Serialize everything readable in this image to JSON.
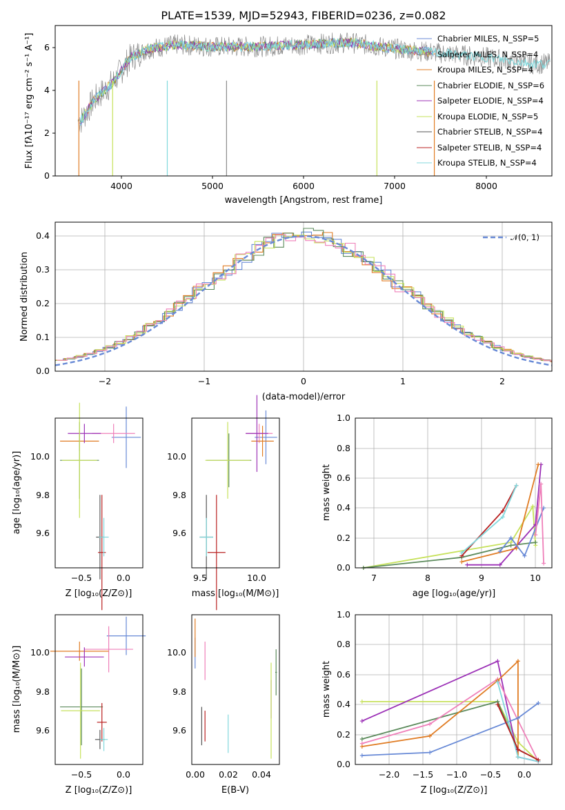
{
  "title": "PLATE=1539, MJD=52943, FIBERID=0236, z=0.082",
  "colors": [
    "#6789d6",
    "#8a8a8a",
    "#e07b22",
    "#5b8a5b",
    "#9b2fb6",
    "#c6e15a",
    "#555555",
    "#b81f1f",
    "#80d8dc",
    "#ef7fb9"
  ],
  "panels": {
    "spectrum": {
      "xlabel": "wavelength [Angstrom, rest frame]",
      "ylabel": "Flux [fλ10⁻¹⁷ erg cm⁻² s⁻¹ A⁻¹]",
      "xticks": [
        "4000",
        "5000",
        "6000",
        "7000",
        "8000"
      ],
      "yticks": [
        "0",
        "2",
        "4",
        "6"
      ],
      "legend": [
        "Chabrier MILES, N_SSP=5",
        "Salpeter MILES, N_SSP=4",
        "Kroupa MILES, N_SSP=4",
        "Chabrier ELODIE, N_SSP=6",
        "Salpeter ELODIE, N_SSP=4",
        "Kroupa ELODIE, N_SSP=5",
        "Chabrier STELIB, N_SSP=4",
        "Salpeter STELIB, N_SSP=4",
        "Kroupa STELIB, N_SSP=4"
      ]
    },
    "residuals": {
      "xlabel": "(data-model)/error",
      "ylabel": "Normed distribution",
      "xticks": [
        "−2",
        "−1",
        "0",
        "1",
        "2"
      ],
      "yticks": [
        "0.0",
        "0.1",
        "0.2",
        "0.3",
        "0.4"
      ],
      "legend": "𝒩(0, 1)"
    },
    "age_z": {
      "xlabel": "Z [log₁₀(Z/Z⊙)]",
      "ylabel": "age  [log₁₀(age/yr)]",
      "xticks": [
        "−0.5",
        "0.0"
      ],
      "yticks": [
        "9.6",
        "9.8",
        "10.0"
      ]
    },
    "age_mass": {
      "xlabel": "mass [log₁₀(M/M⊙)]",
      "xticks": [
        "9.5",
        "10.0"
      ],
      "yticks": [
        "9.6",
        "9.8",
        "10.0"
      ]
    },
    "weight_age": {
      "xlabel": "age  [log₁₀(age/yr)]",
      "ylabel": "mass weight",
      "xticks": [
        "7",
        "8",
        "9",
        "10"
      ],
      "yticks": [
        "0.0",
        "0.2",
        "0.4",
        "0.6",
        "0.8",
        "1.0"
      ]
    },
    "mass_z": {
      "xlabel": "Z [log₁₀(Z/Z⊙)]",
      "ylabel": "mass [log₁₀(M/M⊙)]",
      "xticks": [
        "−0.5",
        "0.0"
      ],
      "yticks": [
        "9.6",
        "9.8",
        "10.0"
      ]
    },
    "mass_ebv": {
      "xlabel": "E(B-V)",
      "xticks": [
        "0.00",
        "0.02",
        "0.04"
      ],
      "yticks": [
        "9.6",
        "9.8",
        "10.0"
      ]
    },
    "weight_z": {
      "xlabel": "Z [log₁₀(Z/Z⊙)]",
      "ylabel": "mass weight",
      "xticks": [
        "−2.0",
        "−1.5",
        "−1.0",
        "−0.5",
        "0.0"
      ],
      "yticks": [
        "0.0",
        "0.2",
        "0.4",
        "0.6",
        "0.8",
        "1.0"
      ]
    }
  },
  "chart_data": [
    {
      "type": "line",
      "xlim": [
        3270,
        8720
      ],
      "ylim": [
        0,
        7.1
      ],
      "series": [
        {
          "name": "Chabrier MILES, N_SSP=5"
        },
        {
          "name": "Kroupa STELIB, N_SSP=4"
        }
      ],
      "x": [
        3550,
        3700,
        3900,
        4100,
        4300,
        4600,
        5000,
        5500,
        6000,
        6500,
        7000,
        7500,
        8000,
        8500
      ],
      "y": [
        2.6,
        3.6,
        4.4,
        5.6,
        6.0,
        6.2,
        6.1,
        6.1,
        6.2,
        6.3,
        6.0,
        5.8,
        5.6,
        5.3
      ]
    },
    {
      "type": "line",
      "grid": true,
      "xlim": [
        -2.5,
        2.5
      ],
      "ylim": [
        0,
        0.44
      ],
      "x": [
        -2.5,
        -2.0,
        -1.5,
        -1.0,
        -0.5,
        0.0,
        0.5,
        1.0,
        1.5,
        2.0,
        2.5
      ],
      "series": [
        {
          "name": "𝒩(0, 1)",
          "values": [
            0.0175,
            0.054,
            0.1295,
            0.242,
            0.352,
            0.399,
            0.352,
            0.242,
            0.1295,
            0.054,
            0.0175
          ]
        },
        {
          "name": "Chabrier MILES, N_SSP=5",
          "values": [
            0.02,
            0.06,
            0.14,
            0.27,
            0.37,
            0.37,
            0.36,
            0.3,
            0.16,
            0.07,
            0.025
          ]
        }
      ]
    },
    {
      "type": "scatter",
      "xlim": [
        -0.7,
        0.2
      ],
      "ylim": [
        9.42,
        10.2
      ],
      "x": [
        0.03,
        -0.1,
        -0.45,
        -0.45,
        -0.4,
        -0.45,
        -0.24,
        -0.22,
        -0.2
      ],
      "y": [
        10.1,
        10.12,
        10.08,
        9.98,
        10.12,
        9.98,
        9.58,
        9.5,
        9.58
      ]
    },
    {
      "type": "scatter",
      "xlim": [
        9.42,
        10.2
      ],
      "ylim": [
        9.42,
        10.2
      ],
      "x": [
        10.08,
        10.02,
        10.05,
        9.75,
        10.0,
        9.74,
        9.55,
        9.64,
        9.55
      ],
      "y": [
        10.1,
        10.12,
        10.08,
        9.98,
        10.12,
        9.98,
        9.58,
        9.5,
        9.58
      ]
    },
    {
      "type": "line",
      "grid": true,
      "xlim": [
        6.75,
        10.35
      ],
      "ylim": [
        0,
        1
      ],
      "x": [
        6.9,
        8.8,
        9.6,
        9.85,
        10.05,
        10.15
      ],
      "series": [
        {
          "name": "Salpeter MILES, N_SSP=4",
          "values": [
            0.0,
            0.02,
            0.35,
            0.55,
            0.29,
            0.69
          ]
        }
      ]
    },
    {
      "type": "scatter",
      "xlim": [
        -0.7,
        0.2
      ],
      "ylim": [
        9.42,
        10.2
      ],
      "x": [
        0.03,
        -0.15,
        -0.45,
        -0.43,
        -0.4,
        -0.44,
        -0.24,
        -0.22,
        -0.2
      ],
      "y": [
        10.09,
        10.02,
        10.01,
        9.72,
        9.98,
        9.7,
        9.55,
        9.64,
        9.55
      ]
    },
    {
      "type": "scatter",
      "xlim": [
        -0.002,
        0.051
      ],
      "ylim": [
        9.42,
        10.2
      ],
      "x": [
        0.0,
        0.006,
        0.0,
        0.049,
        0.046,
        0.046,
        0.004,
        0.006,
        0.02
      ],
      "y": [
        10.0,
        9.96,
        10.08,
        9.9,
        9.76,
        9.7,
        9.62,
        9.62,
        9.58
      ]
    },
    {
      "type": "line",
      "grid": true,
      "xlim": [
        -2.4,
        0.5
      ],
      "ylim": [
        0,
        1
      ],
      "x": [
        -2.3,
        -1.3,
        -0.3,
        0.0,
        0.3
      ],
      "series": [
        {
          "name": "Salpeter MILES, N_SSP=4",
          "values": [
            0.28,
            0.3,
            0.69,
            0.05,
            0.02
          ]
        }
      ]
    }
  ]
}
